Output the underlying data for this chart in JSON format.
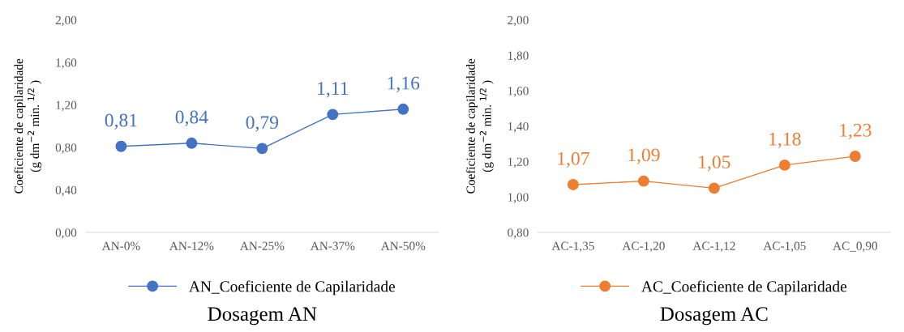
{
  "chart_data": [
    {
      "type": "line",
      "xlabel": "Dosagem AN",
      "ylabel": "Coeficiente de capilaridade\n(g dm$^{−2}$ min. $^{1/2}$ )",
      "categories": [
        "AN-0%",
        "AN-12%",
        "AN-25%",
        "AN-37%",
        "AN-50%"
      ],
      "series": [
        {
          "name": "AN_Coeficiente de Capilaridade",
          "color": "#4472c4",
          "values": [
            0.81,
            0.84,
            0.79,
            1.11,
            1.16
          ],
          "value_labels": [
            "0,81",
            "0,84",
            "0,79",
            "1,11",
            "1,16"
          ]
        }
      ],
      "ylim": [
        0,
        2
      ],
      "yticks": [
        {
          "value": 0,
          "label": "0,00"
        },
        {
          "value": 0.4,
          "label": "0,40"
        },
        {
          "value": 0.8,
          "label": "0,80"
        },
        {
          "value": 1.2,
          "label": "1,20"
        },
        {
          "value": 1.6,
          "label": "1,60"
        },
        {
          "value": 2,
          "label": "2,00"
        }
      ],
      "grid": false,
      "legend": "bottom",
      "marker": "circle",
      "line_style": "solid"
    },
    {
      "type": "line",
      "xlabel": "Dosagem AC",
      "ylabel": "Coeficiente de capilaridade\n(g dm$^{−2}$ min. $^{1/2}$ )",
      "categories": [
        "AC-1,35",
        "AC-1,20",
        "AC-1,12",
        "AC-1,05",
        "AC_0,90"
      ],
      "series": [
        {
          "name": "AC_Coeficiente de Capilaridade",
          "color": "#ed7d31",
          "values": [
            1.07,
            1.09,
            1.05,
            1.18,
            1.23
          ],
          "value_labels": [
            "1,07",
            "1,09",
            "1,05",
            "1,18",
            "1,23"
          ]
        }
      ],
      "ylim": [
        0.8,
        2
      ],
      "yticks": [
        {
          "value": 0.8,
          "label": "0,80"
        },
        {
          "value": 1.0,
          "label": "1,00"
        },
        {
          "value": 1.2,
          "label": "1,20"
        },
        {
          "value": 1.4,
          "label": "1,40"
        },
        {
          "value": 1.6,
          "label": "1,60"
        },
        {
          "value": 1.8,
          "label": "1,80"
        },
        {
          "value": 2,
          "label": "2,00"
        }
      ],
      "grid": false,
      "legend": "bottom",
      "marker": "circle",
      "line_style": "solid"
    }
  ]
}
